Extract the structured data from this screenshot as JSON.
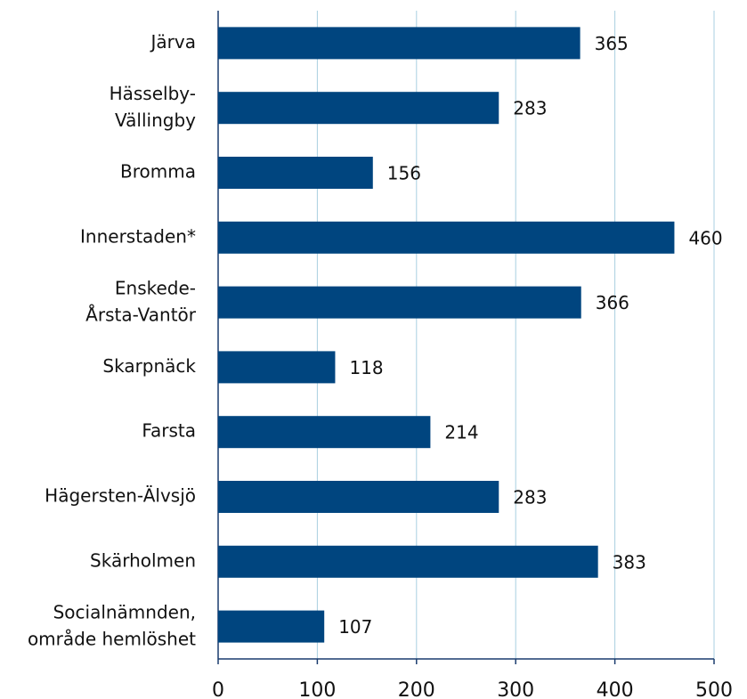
{
  "chart_data": {
    "type": "bar",
    "orientation": "horizontal",
    "categories": [
      "Järva",
      "Hässelby-\nVällingby",
      "Bromma",
      "Innerstaden*",
      "Enskede-\nÅrsta-Vantör",
      "Skarpnäck",
      "Farsta",
      "Hägersten-Älvsjö",
      "Skärholmen",
      "Socialnämnden,\nområde hemlöshet"
    ],
    "values": [
      365,
      283,
      156,
      460,
      366,
      118,
      214,
      283,
      383,
      107
    ],
    "color": "#00457f",
    "xlim": [
      0,
      500
    ],
    "xticks": [
      0,
      100,
      200,
      300,
      400,
      500
    ],
    "grid": true
  }
}
